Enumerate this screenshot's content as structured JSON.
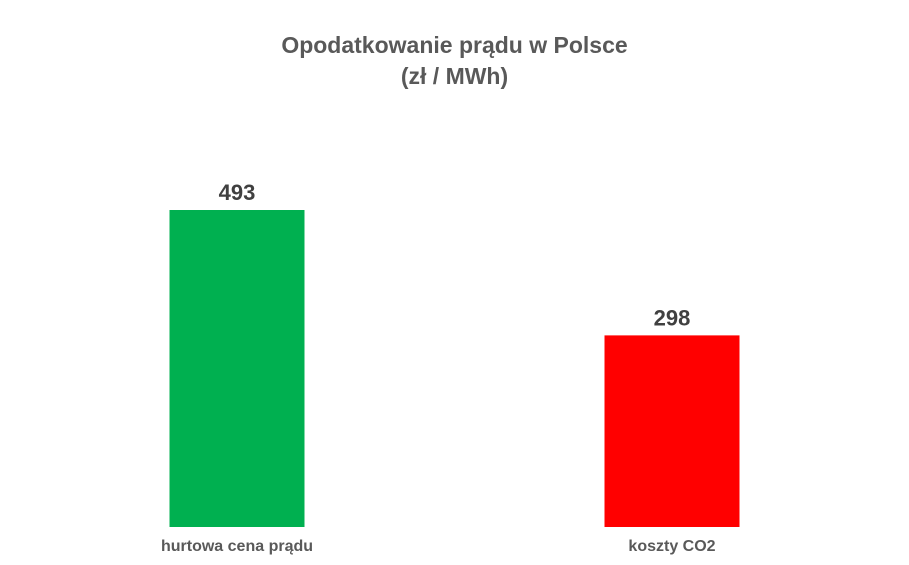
{
  "chart_data": {
    "type": "bar",
    "title": "Opodatkowanie prądu w Polsce",
    "subtitle": "(zł / MWh)",
    "categories": [
      "hurtowa cena prądu",
      "koszty CO2"
    ],
    "values": [
      493,
      298
    ],
    "colors": [
      "#00b050",
      "#ff0000"
    ],
    "data_labels": [
      "493",
      "298"
    ],
    "ylim": [
      0,
      493
    ],
    "grid": false,
    "legend": "none"
  }
}
